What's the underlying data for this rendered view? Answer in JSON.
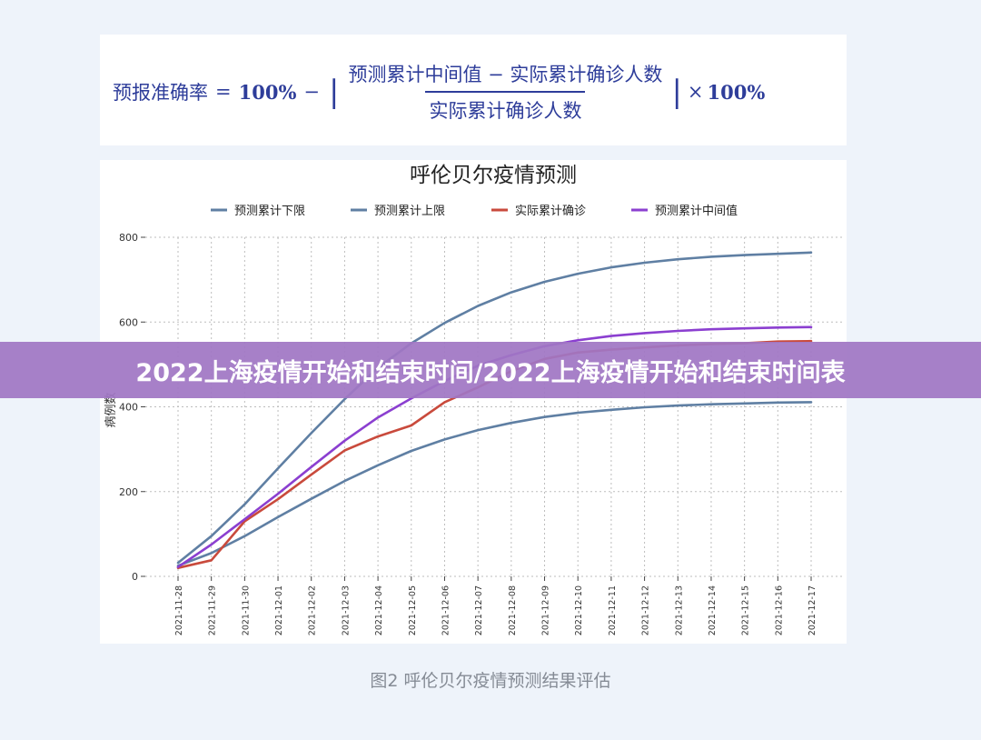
{
  "formula": {
    "lhs": "预报准确率",
    "eq": "=",
    "hundred": "100%",
    "minus": "−",
    "bar_open": "|",
    "numerator": "预测累计中间值 − 实际累计确诊人数",
    "denominator": "实际累计确诊人数",
    "bar_close": "|",
    "times": "×",
    "hundred2": "100%"
  },
  "banner": "2022上海疫情开始和结束时间/2022上海疫情开始和结束时间表",
  "caption": "图2 呼伦贝尔疫情预测结果评估",
  "chart_data": {
    "type": "line",
    "title": "呼伦贝尔疫情预测",
    "ylabel": "病例数",
    "xlabel": "",
    "ylim": [
      0,
      800
    ],
    "yticks": [
      0,
      200,
      400,
      600,
      800
    ],
    "grid": true,
    "legend_position": "top",
    "categories": [
      "2021-11-28",
      "2021-11-29",
      "2021-11-30",
      "2021-12-01",
      "2021-12-02",
      "2021-12-03",
      "2021-12-04",
      "2021-12-05",
      "2021-12-06",
      "2021-12-07",
      "2021-12-08",
      "2021-12-09",
      "2021-12-10",
      "2021-12-11",
      "2021-12-12",
      "2021-12-13",
      "2021-12-14",
      "2021-12-15",
      "2021-12-16",
      "2021-12-17"
    ],
    "series": [
      {
        "name": "预测累计下限",
        "color": "#5f7fa3",
        "values": [
          25,
          55,
          95,
          140,
          183,
          225,
          262,
          296,
          323,
          345,
          362,
          376,
          386,
          393,
          399,
          403,
          406,
          408,
          410,
          411
        ]
      },
      {
        "name": "预测累计上限",
        "color": "#5f7fa3",
        "values": [
          32,
          95,
          170,
          255,
          338,
          418,
          492,
          550,
          598,
          638,
          670,
          695,
          714,
          729,
          740,
          748,
          754,
          758,
          761,
          764
        ]
      },
      {
        "name": "实际累计确诊",
        "color": "#c94a3c",
        "values": [
          20,
          38,
          130,
          182,
          240,
          297,
          330,
          356,
          411,
          446,
          484,
          513,
          528,
          535,
          540,
          545,
          548,
          550,
          554,
          555
        ]
      },
      {
        "name": "预测累计中间值",
        "color": "#8b3fd0",
        "values": [
          22,
          75,
          135,
          195,
          258,
          320,
          375,
          420,
          461,
          497,
          522,
          543,
          557,
          567,
          574,
          579,
          583,
          585,
          587,
          588
        ]
      }
    ]
  }
}
